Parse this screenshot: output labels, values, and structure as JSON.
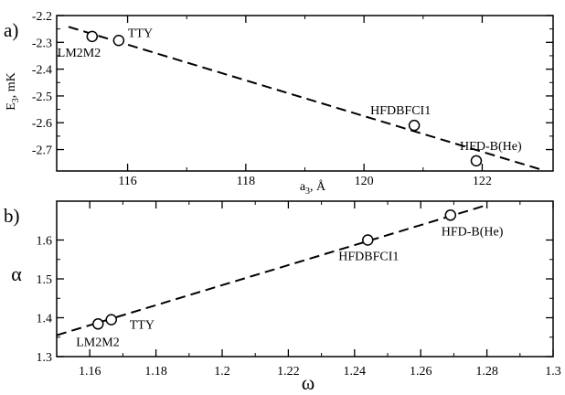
{
  "chart_data": [
    {
      "type": "scatter",
      "panel_label": "a)",
      "xlabel_main": "a",
      "xlabel_sub": "3",
      "xlabel_rest": ", Å",
      "ylabel_main": "E",
      "ylabel_sub": "3",
      "ylabel_rest": ", mK",
      "xlim": [
        114.8,
        123.2
      ],
      "ylim": [
        -2.78,
        -2.2
      ],
      "xticks": [
        116,
        118,
        120,
        122
      ],
      "xtick_labels": [
        "116",
        "118",
        "120",
        "122"
      ],
      "yticks": [
        -2.2,
        -2.3,
        -2.4,
        -2.5,
        -2.6,
        -2.7
      ],
      "ytick_labels": [
        "-2.2",
        "-2.3",
        "-2.4",
        "-2.5",
        "-2.6",
        "-2.7"
      ],
      "points": [
        {
          "x": 115.4,
          "y": -2.278,
          "label": "LM2M2"
        },
        {
          "x": 115.85,
          "y": -2.293,
          "label": "TTY"
        },
        {
          "x": 120.85,
          "y": -2.61,
          "label": "HFDBFCI1"
        },
        {
          "x": 121.9,
          "y": -2.742,
          "label": "HFD-B(He)"
        }
      ],
      "fit_line": {
        "x": [
          115.0,
          123.0
        ],
        "y": [
          -2.242,
          -2.775
        ],
        "style": "dashed"
      }
    },
    {
      "type": "scatter",
      "panel_label": "b)",
      "xlabel": "ω",
      "ylabel": "α",
      "xlim": [
        1.15,
        1.3
      ],
      "ylim": [
        1.3,
        1.7
      ],
      "xticks": [
        1.16,
        1.18,
        1.2,
        1.22,
        1.24,
        1.26,
        1.28,
        1.3
      ],
      "xtick_labels": [
        "1.16",
        "1.18",
        "1.2",
        "1.22",
        "1.24",
        "1.26",
        "1.28",
        "1.3"
      ],
      "yticks": [
        1.3,
        1.4,
        1.5,
        1.6
      ],
      "ytick_labels": [
        "1.3",
        "1.4",
        "1.5",
        "1.6"
      ],
      "points": [
        {
          "x": 1.1625,
          "y": 1.384,
          "label": "LM2M2"
        },
        {
          "x": 1.1665,
          "y": 1.395,
          "label": "TTY"
        },
        {
          "x": 1.244,
          "y": 1.6,
          "label": "HFDBFCI1"
        },
        {
          "x": 1.269,
          "y": 1.664,
          "label": "HFD-B(He)"
        }
      ],
      "fit_line": {
        "x": [
          1.15,
          1.28
        ],
        "y": [
          1.355,
          1.69
        ],
        "style": "dashed"
      }
    }
  ]
}
